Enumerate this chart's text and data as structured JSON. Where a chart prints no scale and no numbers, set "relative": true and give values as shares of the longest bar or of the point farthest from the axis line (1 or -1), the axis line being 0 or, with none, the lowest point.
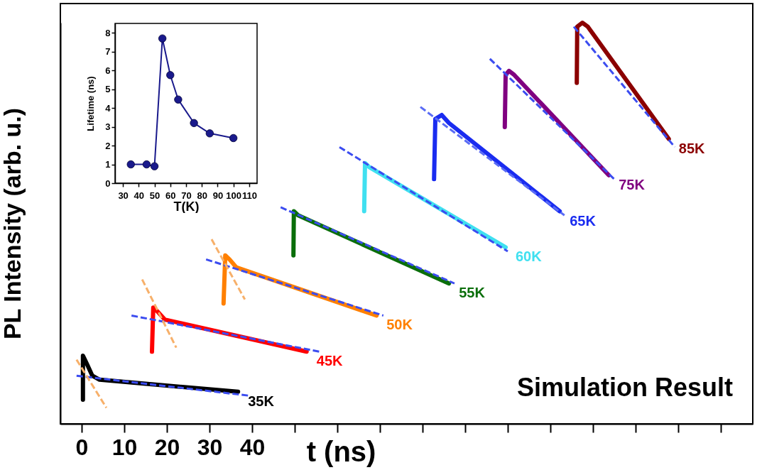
{
  "chart_data": [
    {
      "type": "line",
      "relative": true,
      "xlabel": "t (ns)",
      "ylabel": "PL Intensity (arb. u.)",
      "xlim": [
        -5,
        157.5
      ],
      "xticks": [
        0,
        10,
        20,
        30,
        40,
        {
          "value": 50,
          "label": null
        },
        {
          "value": 60,
          "label": null
        },
        {
          "value": 70,
          "label": null
        },
        {
          "value": 80,
          "label": null
        },
        {
          "value": 90,
          "label": null
        },
        {
          "value": 100,
          "label": null
        },
        {
          "value": 110,
          "label": null
        },
        {
          "value": 120,
          "label": null
        },
        {
          "value": 130,
          "label": null
        },
        {
          "value": 140,
          "label": null
        },
        {
          "value": 150,
          "label": null
        }
      ],
      "grid": false,
      "annotations": [
        "Simulation Result"
      ],
      "series": [
        {
          "name": "35K",
          "color": "#000000",
          "x": [
            0.3,
            0.3,
            1.2,
            2.5,
            4.2,
            36.7
          ],
          "values": [
            0.06,
            0.17,
            0.15,
            0.12,
            0.11,
            0.08
          ]
        },
        {
          "color": "#3b4cf0",
          "line_style": "dashed",
          "x": [
            -1.2,
            39.5
          ],
          "values": [
            0.12,
            0.07
          ]
        },
        {
          "color": "#f7b06a",
          "line_style": "dashed",
          "x": [
            -1.2,
            5.8
          ],
          "values": [
            0.16,
            0.04
          ]
        },
        {
          "name": "45K",
          "color": "#ff0000",
          "x": [
            16.5,
            16.8,
            17.8,
            19.5,
            52.8
          ],
          "values": [
            0.18,
            0.29,
            0.28,
            0.26,
            0.18
          ]
        },
        {
          "color": "#3b4cf0",
          "line_style": "dashed",
          "x": [
            11.7,
            55.8
          ],
          "values": [
            0.27,
            0.18
          ]
        },
        {
          "color": "#f7b06a",
          "line_style": "dashed",
          "x": [
            14.2,
            22.2
          ],
          "values": [
            0.36,
            0.19
          ]
        },
        {
          "name": "50K",
          "color": "#ff8000",
          "x": [
            33.3,
            33.7,
            34.7,
            36.3,
            69.2
          ],
          "values": [
            0.3,
            0.42,
            0.41,
            0.39,
            0.27
          ]
        },
        {
          "color": "#3b4cf0",
          "line_style": "dashed",
          "x": [
            29.2,
            70.8
          ],
          "values": [
            0.41,
            0.27
          ]
        },
        {
          "color": "#f7b06a",
          "line_style": "dashed",
          "x": [
            30.5,
            38.3
          ],
          "values": [
            0.46,
            0.31
          ]
        },
        {
          "name": "55K",
          "color": "#0a6e0a",
          "x": [
            49.7,
            49.8,
            50.8,
            86.2
          ],
          "values": [
            0.42,
            0.53,
            0.52,
            0.35
          ]
        },
        {
          "color": "#3b4cf0",
          "line_style": "dashed",
          "x": [
            46.7,
            87.5
          ],
          "values": [
            0.54,
            0.35
          ]
        },
        {
          "name": "60K",
          "color": "#40e0f0",
          "x": [
            66.3,
            66.5,
            67.5,
            99.5
          ],
          "values": [
            0.53,
            0.65,
            0.64,
            0.44
          ]
        },
        {
          "color": "#3b4cf0",
          "line_style": "dashed",
          "x": [
            60.5,
            100
          ],
          "values": [
            0.69,
            0.43
          ]
        },
        {
          "name": "65K",
          "color": "#1a2cf0",
          "x": [
            82.7,
            83,
            84.5,
            86.2,
            112.2
          ],
          "values": [
            0.61,
            0.76,
            0.77,
            0.75,
            0.53
          ]
        },
        {
          "color": "#5a6cf5",
          "line_style": "dashed",
          "x": [
            79.5,
            113.3
          ],
          "values": [
            0.79,
            0.52
          ]
        },
        {
          "name": "75K",
          "color": "#800080",
          "x": [
            99.3,
            99.5,
            100.3,
            101.5,
            123.7
          ],
          "values": [
            0.74,
            0.87,
            0.88,
            0.87,
            0.62
          ]
        },
        {
          "color": "#3b4cf0",
          "line_style": "dashed",
          "x": [
            95.8,
            125
          ],
          "values": [
            0.91,
            0.61
          ]
        },
        {
          "name": "85K",
          "color": "#8b0000",
          "x": [
            116.2,
            116.3,
            117.5,
            118.8,
            137.8
          ],
          "values": [
            0.85,
            0.99,
            1,
            0.99,
            0.71
          ]
        },
        {
          "color": "#3b4cf0",
          "line_style": "dashed",
          "x": [
            115.5,
            139.2
          ],
          "values": [
            0.99,
            0.69
          ]
        }
      ]
    },
    {
      "type": "line",
      "xlabel": "T(K)",
      "ylabel": "Lifetime (ns)",
      "xlim": [
        25,
        115
      ],
      "xticks": [
        30,
        40,
        50,
        60,
        70,
        80,
        90,
        100,
        110
      ],
      "ylim": [
        0,
        8.5
      ],
      "yticks": [
        0,
        1,
        2,
        3,
        4,
        5,
        6,
        7,
        8
      ],
      "marker": "circle",
      "grid": false,
      "x": [
        35,
        45,
        50,
        55,
        60,
        65,
        75,
        85,
        100
      ],
      "series": [
        {
          "color": "#1a1a8c",
          "values": [
            1.0,
            1.0,
            0.9,
            7.7,
            5.75,
            4.45,
            3.2,
            2.65,
            2.4
          ]
        }
      ]
    }
  ]
}
